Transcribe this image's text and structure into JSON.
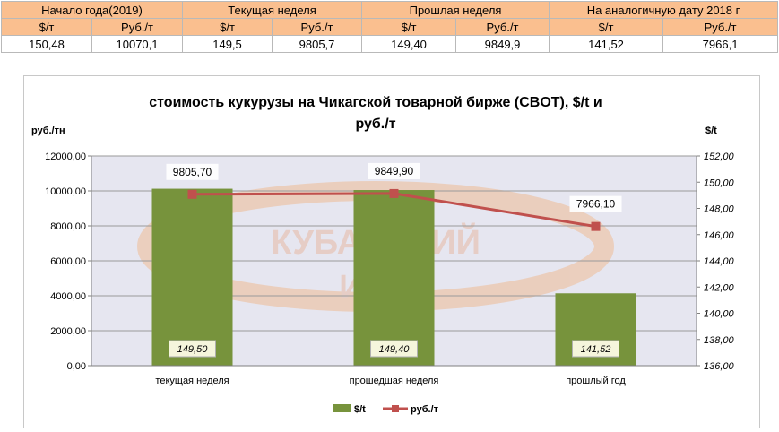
{
  "summary_table": {
    "groups": [
      "Начало года(2019)",
      "Текущая неделя",
      "Прошлая неделя",
      "На аналогичную дату 2018 г"
    ],
    "units": [
      "$/т",
      "Руб./т",
      "$/т",
      "Руб./т",
      "$/т",
      "Руб./т",
      "$/т",
      "Руб./т"
    ],
    "values": [
      "150,48",
      "10070,1",
      "149,5",
      "9805,7",
      "149,40",
      "9849,9",
      "141,52",
      "7966,1"
    ]
  },
  "chart_data": {
    "type": "bar",
    "title": "стоимость кукурузы на Чикагской товарной бирже (CBOT), $/t и руб./т",
    "title_lines": [
      "стоимость кукурузы на Чикагской товарной бирже (CBOT), $/t и",
      "руб./т"
    ],
    "y_left_label": "руб./тн",
    "y_right_label": "$/t",
    "categories": [
      "текущая неделя",
      "прошедшая неделя",
      "прошлый год"
    ],
    "series": [
      {
        "name": "$/t",
        "type": "bar",
        "axis": "right",
        "color": "#77933c",
        "values": [
          149.5,
          149.4,
          141.52
        ],
        "labels": [
          "149,50",
          "149,40",
          "141,52"
        ]
      },
      {
        "name": "руб./т",
        "type": "line",
        "axis": "left",
        "color": "#c0504d",
        "values": [
          9805.7,
          9849.9,
          7966.1
        ],
        "labels": [
          "9805,70",
          "9849,90",
          "7966,10"
        ]
      }
    ],
    "y_left": {
      "min": 0,
      "max": 12000,
      "step": 2000,
      "ticks": [
        "0,00",
        "2000,00",
        "4000,00",
        "6000,00",
        "8000,00",
        "10000,00",
        "12000,00"
      ]
    },
    "y_right": {
      "min": 136,
      "max": 152,
      "step": 2,
      "ticks": [
        "136,00",
        "138,00",
        "140,00",
        "142,00",
        "144,00",
        "146,00",
        "148,00",
        "150,00",
        "152,00"
      ]
    },
    "gridlines": true,
    "legend_position": "bottom",
    "plot_background": "#e6e6f0"
  },
  "watermark_text": [
    "КУБАНСКИЙ",
    "ИНД"
  ]
}
